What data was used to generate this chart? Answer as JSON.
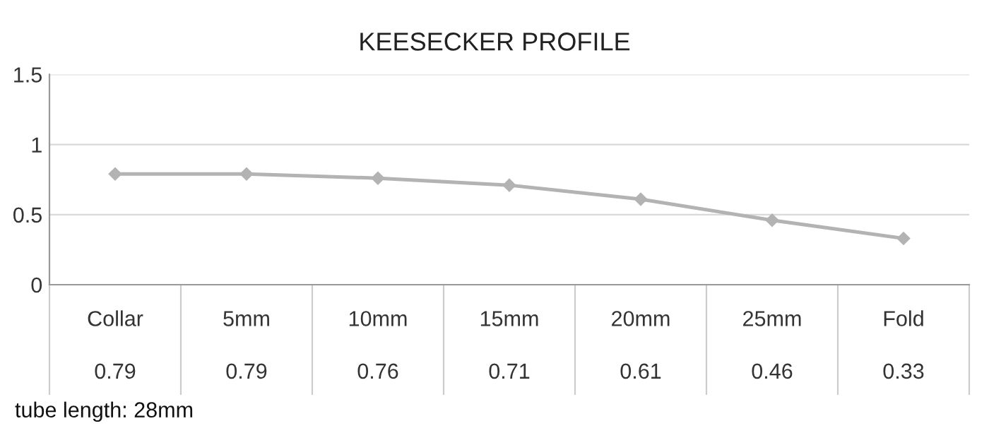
{
  "chart_data": {
    "type": "line",
    "title": "KEESECKER PROFILE",
    "categories": [
      "Collar",
      "5mm",
      "10mm",
      "15mm",
      "20mm",
      "25mm",
      "Fold"
    ],
    "values": [
      0.79,
      0.79,
      0.76,
      0.71,
      0.61,
      0.46,
      0.33
    ],
    "color": "#b3b3b3",
    "marker": "diamond",
    "line_style": "solid",
    "ylim": [
      0,
      1.5
    ],
    "yticks": [
      0,
      0.5,
      1,
      1.5
    ],
    "grid": "y",
    "data_labels": true,
    "legend": false,
    "annotations": [
      "tube length: 28mm"
    ]
  }
}
